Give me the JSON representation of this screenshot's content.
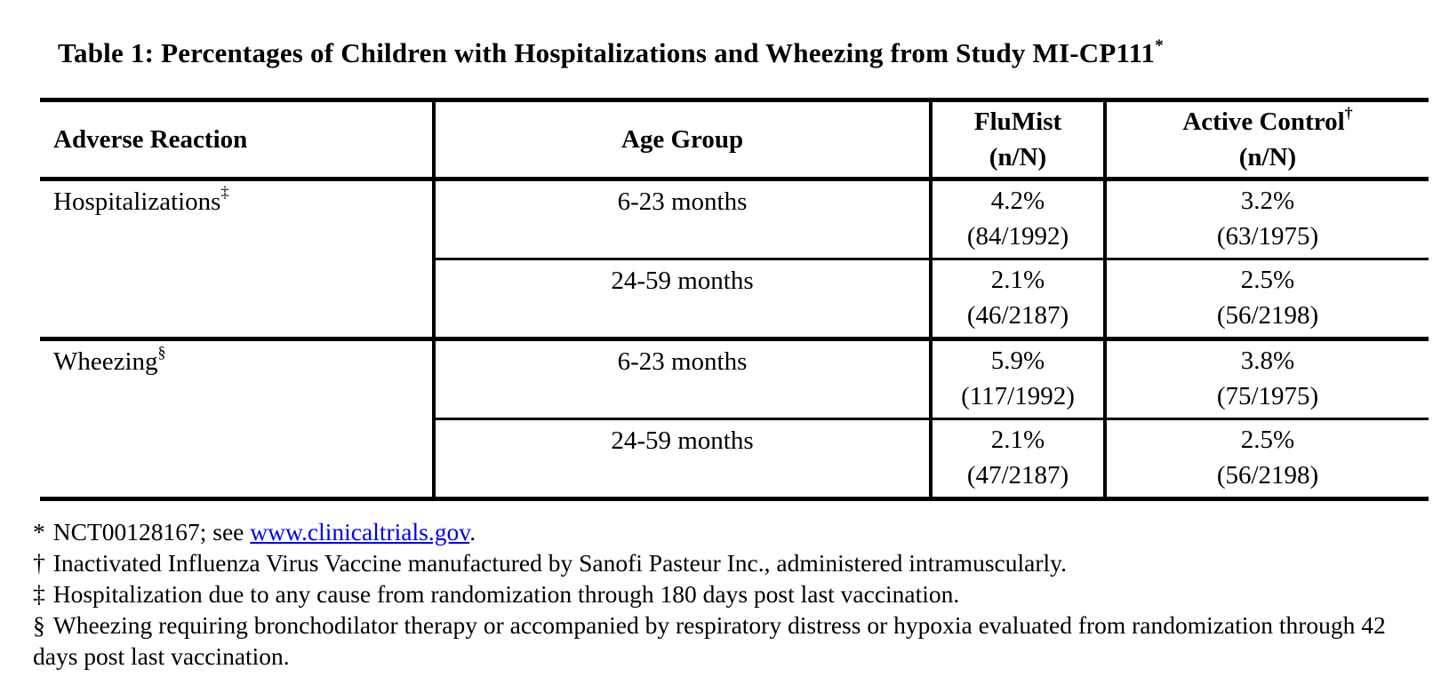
{
  "colors": {
    "background": "#FFFFFF",
    "text": "#000000",
    "border": "#000000",
    "link_blue": "#0000EE"
  },
  "title": {
    "text": "Table 1: Percentages of Children with Hospitalizations and Wheezing from Study MI-CP111",
    "superscript": "*"
  },
  "table": {
    "columns": {
      "adverse_reaction": "Adverse Reaction",
      "age_group": "Age Group",
      "flumist": {
        "name": "FluMist",
        "sub": "(n/N)"
      },
      "active_control": {
        "name": "Active Control",
        "superscript": "†",
        "sub": "(n/N)"
      }
    },
    "sections": [
      {
        "label": "Hospitalizations",
        "superscript": "‡",
        "rows": [
          {
            "age_group": "6-23 months",
            "flumist_pct": "4.2%",
            "flumist_n": "(84/1992)",
            "control_pct": "3.2%",
            "control_n": "(63/1975)"
          },
          {
            "age_group": "24-59 months",
            "flumist_pct": "2.1%",
            "flumist_n": "(46/2187)",
            "control_pct": "2.5%",
            "control_n": "(56/2198)"
          }
        ]
      },
      {
        "label": "Wheezing",
        "superscript": "§",
        "rows": [
          {
            "age_group": "6-23 months",
            "flumist_pct": "5.9%",
            "flumist_n": "(117/1992)",
            "control_pct": "3.8%",
            "control_n": "(75/1975)"
          },
          {
            "age_group": "24-59 months",
            "flumist_pct": "2.1%",
            "flumist_n": "(47/2187)",
            "control_pct": "2.5%",
            "control_n": "(56/2198)"
          }
        ]
      }
    ]
  },
  "footnotes": [
    {
      "marker": "*",
      "text_before_link": "NCT00128167; see",
      "link": "www.clinicaltrials.gov",
      "text_after_link": "."
    },
    {
      "marker": "†",
      "text": "Inactivated Influenza Virus Vaccine manufactured by Sanofi Pasteur Inc., administered intramuscularly."
    },
    {
      "marker": "‡",
      "text": "Hospitalization due to any cause from randomization through 180 days post last vaccination."
    },
    {
      "marker": "§",
      "text": "Wheezing requiring bronchodilator therapy or accompanied by respiratory distress or hypoxia evaluated from randomization through 42 days post last vaccination."
    }
  ]
}
